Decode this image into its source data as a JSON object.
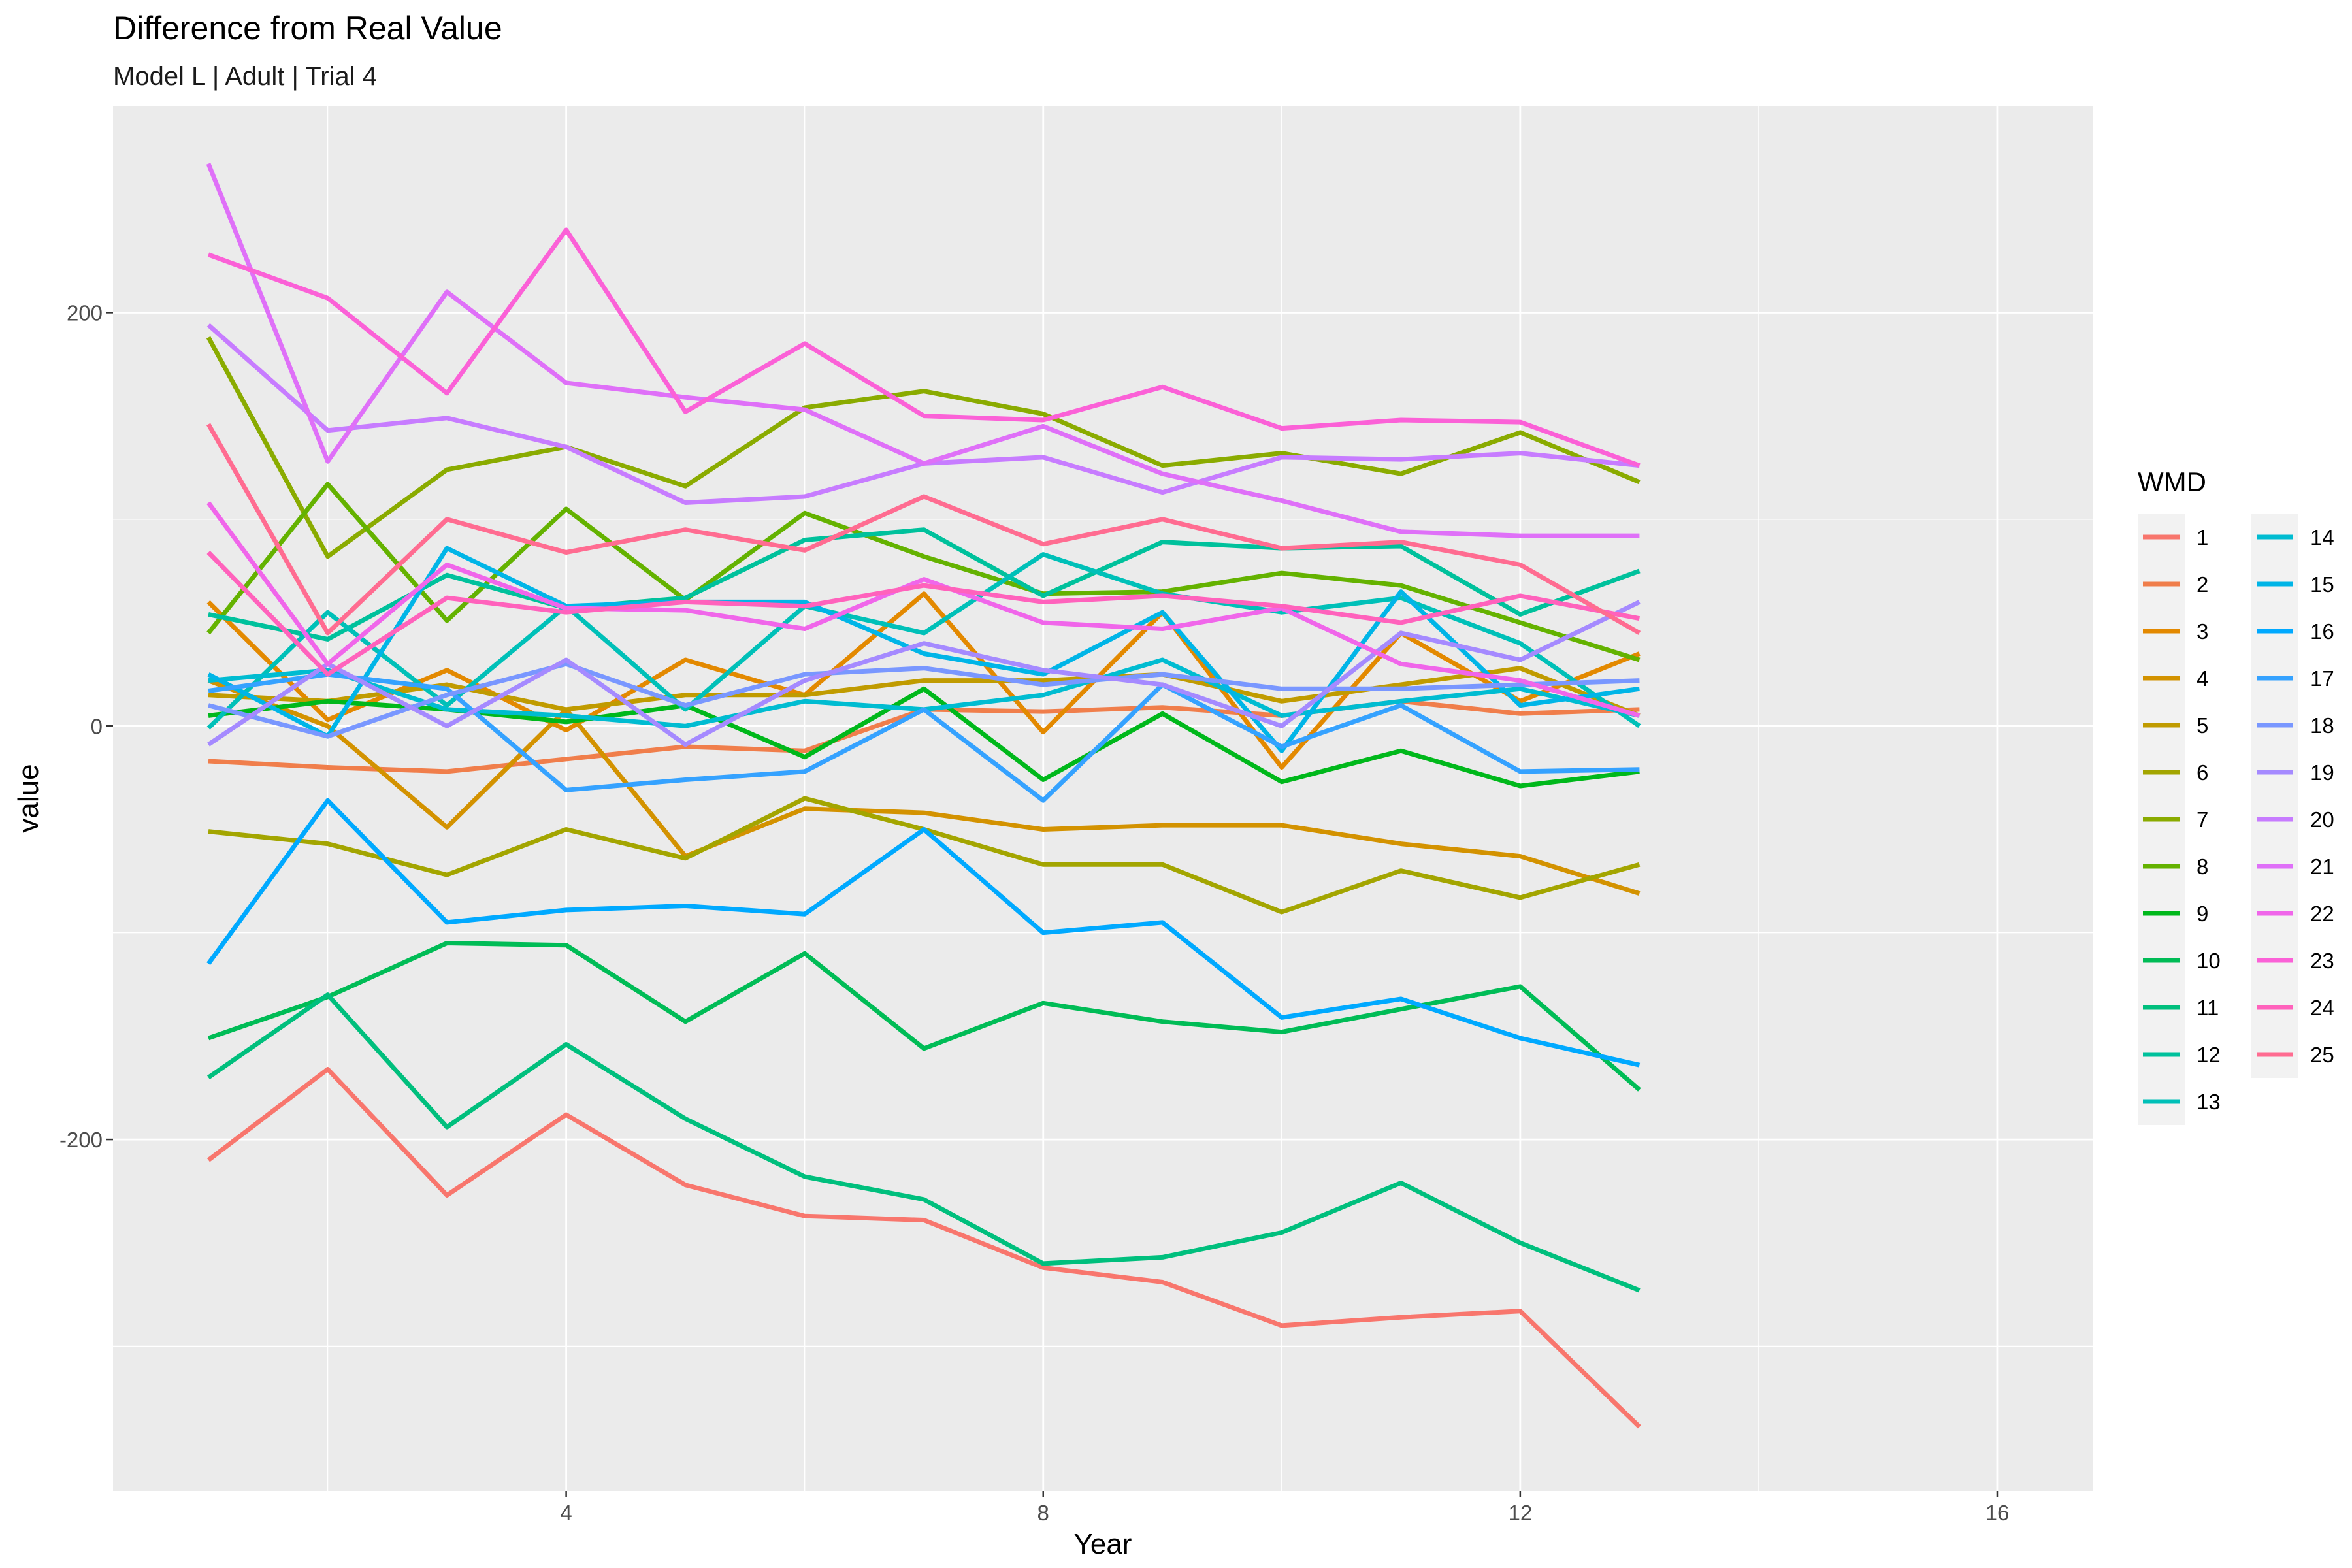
{
  "chart_data": {
    "type": "line",
    "title": "Difference from Real Value",
    "subtitle": "Model L | Adult | Trial 4",
    "xlabel": "Year",
    "ylabel": "value",
    "xlim": [
      0.2,
      16.8
    ],
    "ylim": [
      -370,
      300
    ],
    "x_ticks": [
      4,
      8,
      12,
      16
    ],
    "y_ticks": [
      -200,
      0,
      200
    ],
    "x_tick_labels": [
      "4",
      "8",
      "12",
      "16"
    ],
    "y_tick_labels": [
      "-200",
      "0",
      "200"
    ],
    "grid": true,
    "legend": {
      "title": "WMD",
      "position": "right",
      "columns": 2
    },
    "x": [
      1,
      2,
      3,
      4,
      5,
      6,
      7,
      8,
      9,
      10,
      11,
      12,
      13
    ],
    "series": [
      {
        "name": "1",
        "color": "#F8766D",
        "values": [
          -210,
          -166,
          -227,
          -188,
          -222,
          -237,
          -239,
          -262,
          -269,
          -290,
          -286,
          -283,
          -339
        ]
      },
      {
        "name": "2",
        "color": "#F07E4B",
        "values": [
          -17,
          -20,
          -22,
          -16,
          -10,
          -12,
          8,
          7,
          9,
          5,
          12,
          6,
          8
        ]
      },
      {
        "name": "3",
        "color": "#E38900",
        "values": [
          60,
          3,
          27,
          -2,
          32,
          15,
          64,
          -3,
          55,
          -20,
          45,
          12,
          35
        ]
      },
      {
        "name": "4",
        "color": "#D39200",
        "values": [
          22,
          0,
          -49,
          8,
          -63,
          -40,
          -42,
          -50,
          -48,
          -48,
          -57,
          -63,
          -81
        ]
      },
      {
        "name": "5",
        "color": "#C09B00",
        "values": [
          15,
          12,
          20,
          8,
          15,
          15,
          22,
          22,
          25,
          12,
          20,
          28,
          5
        ]
      },
      {
        "name": "6",
        "color": "#A3A500",
        "values": [
          -51,
          -57,
          -72,
          -50,
          -64,
          -35,
          -50,
          -67,
          -67,
          -90,
          -70,
          -83,
          -67
        ]
      },
      {
        "name": "7",
        "color": "#8AAB00",
        "values": [
          188,
          82,
          124,
          135,
          116,
          154,
          162,
          151,
          126,
          132,
          122,
          142,
          118
        ]
      },
      {
        "name": "8",
        "color": "#64B200",
        "values": [
          45,
          117,
          51,
          105,
          61,
          103,
          82,
          64,
          65,
          74,
          68,
          50,
          32
        ]
      },
      {
        "name": "9",
        "color": "#00B81B",
        "values": [
          5,
          12,
          8,
          2,
          10,
          -15,
          18,
          -26,
          6,
          -27,
          -12,
          -29,
          -22
        ]
      },
      {
        "name": "10",
        "color": "#00BC56",
        "values": [
          -151,
          -131,
          -105,
          -106,
          -143,
          -110,
          -156,
          -134,
          -143,
          -148,
          -137,
          -126,
          -176
        ]
      },
      {
        "name": "11",
        "color": "#00BF7D",
        "values": [
          -170,
          -130,
          -194,
          -154,
          -190,
          -218,
          -229,
          -260,
          -257,
          -245,
          -221,
          -250,
          -273
        ]
      },
      {
        "name": "12",
        "color": "#00C19C",
        "values": [
          54,
          42,
          73,
          57,
          62,
          90,
          95,
          63,
          89,
          86,
          87,
          54,
          75
        ]
      },
      {
        "name": "13",
        "color": "#00C0B8",
        "values": [
          -1,
          55,
          10,
          58,
          8,
          58,
          45,
          83,
          64,
          55,
          62,
          40,
          0
        ]
      },
      {
        "name": "14",
        "color": "#00BCD1",
        "values": [
          22,
          27,
          8,
          5,
          0,
          12,
          8,
          15,
          32,
          5,
          12,
          18,
          5
        ]
      },
      {
        "name": "15",
        "color": "#00B5E7",
        "values": [
          25,
          -5,
          86,
          58,
          60,
          60,
          35,
          25,
          55,
          -12,
          65,
          10,
          18
        ]
      },
      {
        "name": "16",
        "color": "#00A9FF",
        "values": [
          -115,
          -36,
          -95,
          -89,
          -87,
          -91,
          -50,
          -100,
          -95,
          -141,
          -132,
          -151,
          -164
        ]
      },
      {
        "name": "17",
        "color": "#35A2FF",
        "values": [
          17,
          25,
          18,
          -31,
          -26,
          -22,
          8,
          -36,
          20,
          -10,
          10,
          -22,
          -21
        ]
      },
      {
        "name": "18",
        "color": "#7997FF",
        "values": [
          10,
          -5,
          15,
          30,
          10,
          25,
          28,
          20,
          25,
          18,
          18,
          20,
          22
        ]
      },
      {
        "name": "19",
        "color": "#A58AFF",
        "values": [
          -9,
          30,
          0,
          32,
          -9,
          22,
          40,
          27,
          20,
          0,
          45,
          32,
          60
        ]
      },
      {
        "name": "20",
        "color": "#C77CFF",
        "values": [
          194,
          143,
          149,
          135,
          108,
          111,
          127,
          130,
          113,
          130,
          129,
          132,
          126
        ]
      },
      {
        "name": "21",
        "color": "#DF70F8",
        "values": [
          272,
          128,
          210,
          166,
          159,
          153,
          127,
          145,
          122,
          109,
          94,
          92,
          92
        ]
      },
      {
        "name": "22",
        "color": "#F066EA",
        "values": [
          108,
          30,
          78,
          57,
          56,
          47,
          71,
          50,
          47,
          57,
          30,
          22,
          5
        ]
      },
      {
        "name": "23",
        "color": "#FB61D7",
        "values": [
          228,
          207,
          161,
          240,
          152,
          185,
          150,
          148,
          164,
          144,
          148,
          147,
          126
        ]
      },
      {
        "name": "24",
        "color": "#FF62BC",
        "values": [
          84,
          25,
          62,
          55,
          60,
          58,
          68,
          60,
          63,
          58,
          50,
          63,
          52
        ]
      },
      {
        "name": "25",
        "color": "#FF6C91",
        "values": [
          146,
          45,
          100,
          84,
          95,
          85,
          111,
          88,
          100,
          86,
          89,
          78,
          45
        ]
      }
    ]
  }
}
